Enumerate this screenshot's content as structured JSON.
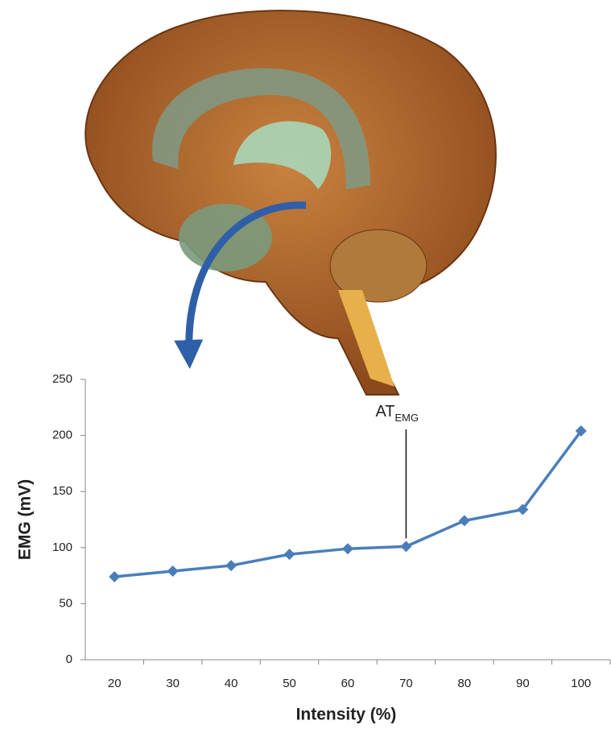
{
  "chart_data": {
    "type": "line",
    "x_label": "Intensity (%)",
    "y_label": "EMG (mV)",
    "categories": [
      "20",
      "30",
      "40",
      "50",
      "60",
      "70",
      "80",
      "90",
      "100"
    ],
    "series": [
      {
        "name": "EMG",
        "color": "#4a7ebb",
        "values": [
          74,
          79,
          84,
          94,
          99,
          101,
          124,
          134,
          204
        ]
      }
    ],
    "ylim": [
      0,
      250
    ],
    "yticks": [
      0,
      50,
      100,
      150,
      200,
      250
    ],
    "grid": false,
    "annotation": {
      "text": "AT",
      "subscript": "EMG"
    }
  }
}
